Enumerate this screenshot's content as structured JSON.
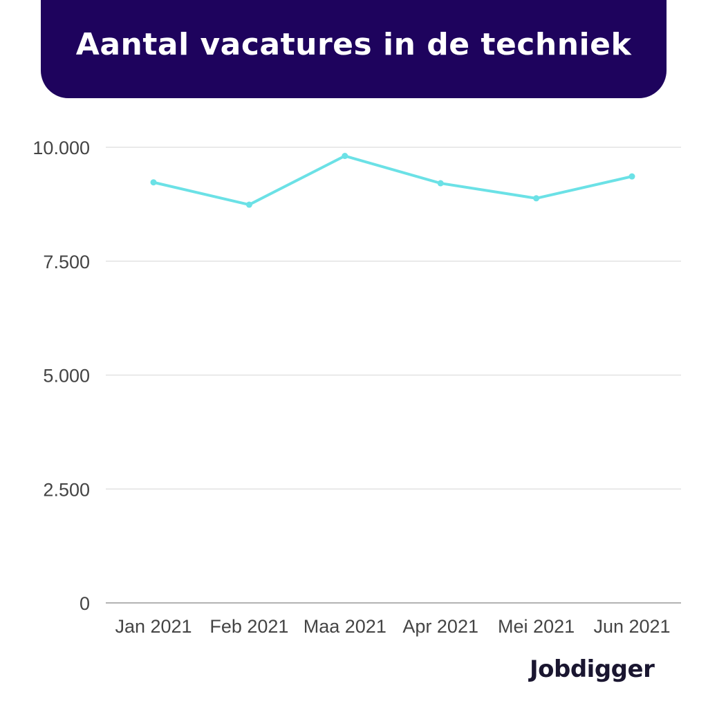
{
  "header": {
    "title": "Aantal vacatures in de techniek"
  },
  "brand": {
    "logo_text": "Jobdigger"
  },
  "colors": {
    "banner": "#1e035d",
    "line": "#6be1e6",
    "grid": "#dddddd",
    "axis": "#999999"
  },
  "chart_data": {
    "type": "line",
    "title": "Aantal vacatures in de techniek",
    "xlabel": "",
    "ylabel": "",
    "categories": [
      "Jan 2021",
      "Feb 2021",
      "Maa 2021",
      "Apr 2021",
      "Mei 2021",
      "Jun 2021"
    ],
    "series": [
      {
        "values": [
          9230,
          8740,
          9810,
          9210,
          8880,
          9360
        ]
      }
    ],
    "ylim": [
      0,
      10000
    ],
    "yticks": [
      0,
      2500,
      5000,
      7500,
      10000
    ],
    "ytick_labels": [
      "0",
      "2.500",
      "5.000",
      "7.500",
      "10.000"
    ],
    "grid": true,
    "legend": "none"
  }
}
